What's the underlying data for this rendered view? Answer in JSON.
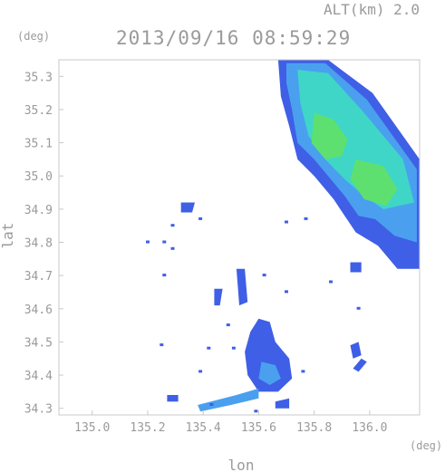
{
  "header": {
    "altitude_label": "ALT(km) 2.0",
    "timestamp": "2013/09/16 08:59:29"
  },
  "chart_data": {
    "type": "heatmap",
    "title": "2013/09/16 08:59:29",
    "subtitle": "ALT(km) 2.0",
    "xlabel": "lon",
    "ylabel": "lat",
    "x_unit": "(deg)",
    "y_unit": "(deg)",
    "xlim": [
      134.88,
      136.18
    ],
    "ylim": [
      34.28,
      35.35
    ],
    "grid": false,
    "x_ticks": [
      "135.0",
      "135.2",
      "135.4",
      "135.6",
      "135.8",
      "136.0"
    ],
    "y_ticks": [
      "34.3",
      "34.4",
      "34.5",
      "34.6",
      "34.7",
      "34.8",
      "34.9",
      "35.0",
      "35.1",
      "35.2",
      "35.3"
    ],
    "colors": {
      "weak": "#3f5fe6",
      "light": "#4aa0ee",
      "moderate": "#3fd6c8",
      "strong": "#5ee070",
      "frame": "#c8c8c8",
      "text": "#9a9a9a"
    },
    "echo_regions": [
      {
        "name": "northeast-band-outer",
        "level": "weak",
        "points": [
          [
            135.67,
            35.35
          ],
          [
            135.85,
            35.35
          ],
          [
            136.01,
            35.25
          ],
          [
            136.18,
            35.05
          ],
          [
            136.18,
            34.72
          ],
          [
            136.1,
            34.72
          ],
          [
            136.03,
            34.79
          ],
          [
            135.95,
            34.83
          ],
          [
            135.91,
            34.88
          ],
          [
            135.87,
            34.93
          ],
          [
            135.84,
            34.96
          ],
          [
            135.8,
            35.0
          ],
          [
            135.74,
            35.05
          ],
          [
            135.71,
            35.15
          ],
          [
            135.68,
            35.24
          ]
        ]
      },
      {
        "name": "northeast-band-mid",
        "level": "light",
        "points": [
          [
            135.7,
            35.34
          ],
          [
            135.84,
            35.34
          ],
          [
            135.99,
            35.23
          ],
          [
            136.17,
            35.02
          ],
          [
            136.17,
            34.8
          ],
          [
            136.09,
            34.82
          ],
          [
            136.02,
            34.87
          ],
          [
            135.96,
            34.88
          ],
          [
            135.91,
            34.94
          ],
          [
            135.86,
            34.99
          ],
          [
            135.8,
            35.05
          ],
          [
            135.74,
            35.1
          ],
          [
            135.72,
            35.2
          ],
          [
            135.7,
            35.28
          ]
        ]
      },
      {
        "name": "northeast-band-core",
        "level": "moderate",
        "points": [
          [
            135.74,
            35.32
          ],
          [
            135.85,
            35.31
          ],
          [
            135.97,
            35.2
          ],
          [
            136.12,
            35.05
          ],
          [
            136.16,
            34.92
          ],
          [
            136.05,
            34.9
          ],
          [
            135.98,
            34.94
          ],
          [
            135.91,
            34.99
          ],
          [
            135.84,
            35.05
          ],
          [
            135.78,
            35.12
          ],
          [
            135.75,
            35.22
          ]
        ]
      },
      {
        "name": "northeast-cell-north",
        "level": "strong",
        "points": [
          [
            135.8,
            35.19
          ],
          [
            135.87,
            35.17
          ],
          [
            135.92,
            35.11
          ],
          [
            135.9,
            35.06
          ],
          [
            135.84,
            35.05
          ],
          [
            135.79,
            35.1
          ]
        ]
      },
      {
        "name": "northeast-cell-south",
        "level": "strong",
        "points": [
          [
            135.95,
            35.05
          ],
          [
            136.05,
            35.03
          ],
          [
            136.1,
            34.96
          ],
          [
            136.06,
            34.91
          ],
          [
            135.98,
            34.93
          ],
          [
            135.93,
            34.99
          ]
        ]
      },
      {
        "name": "central-cluster",
        "level": "weak",
        "points": [
          [
            135.6,
            34.57
          ],
          [
            135.64,
            34.56
          ],
          [
            135.66,
            34.5
          ],
          [
            135.71,
            34.45
          ],
          [
            135.72,
            34.39
          ],
          [
            135.67,
            34.35
          ],
          [
            135.6,
            34.35
          ],
          [
            135.56,
            34.4
          ],
          [
            135.55,
            34.47
          ],
          [
            135.57,
            34.53
          ]
        ]
      },
      {
        "name": "central-core",
        "level": "light",
        "points": [
          [
            135.61,
            34.44
          ],
          [
            135.66,
            34.43
          ],
          [
            135.68,
            34.39
          ],
          [
            135.64,
            34.37
          ],
          [
            135.6,
            34.39
          ]
        ]
      },
      {
        "name": "southern-line",
        "level": "light",
        "points": [
          [
            135.38,
            34.31
          ],
          [
            135.52,
            34.34
          ],
          [
            135.6,
            34.36
          ],
          [
            135.6,
            34.33
          ],
          [
            135.5,
            34.31
          ],
          [
            135.39,
            34.29
          ]
        ]
      },
      {
        "name": "southeast-cell-a",
        "level": "weak",
        "points": [
          [
            135.93,
            34.49
          ],
          [
            135.96,
            34.5
          ],
          [
            135.97,
            34.46
          ],
          [
            135.94,
            34.45
          ]
        ]
      },
      {
        "name": "southeast-cell-b",
        "level": "weak",
        "points": [
          [
            135.94,
            34.42
          ],
          [
            135.97,
            34.45
          ],
          [
            135.99,
            34.44
          ],
          [
            135.96,
            34.41
          ]
        ]
      },
      {
        "name": "mid-scatter-a",
        "level": "weak",
        "points": [
          [
            135.52,
            34.72
          ],
          [
            135.55,
            34.72
          ],
          [
            135.56,
            34.62
          ],
          [
            135.53,
            34.61
          ]
        ]
      },
      {
        "name": "mid-scatter-b",
        "level": "weak",
        "points": [
          [
            135.32,
            34.92
          ],
          [
            135.37,
            34.92
          ],
          [
            135.36,
            34.89
          ],
          [
            135.32,
            34.89
          ]
        ]
      },
      {
        "name": "mid-scatter-c",
        "level": "weak",
        "points": [
          [
            135.44,
            34.66
          ],
          [
            135.47,
            34.66
          ],
          [
            135.46,
            34.61
          ],
          [
            135.44,
            34.61
          ]
        ]
      },
      {
        "name": "southwest-cell",
        "level": "weak",
        "points": [
          [
            135.27,
            34.34
          ],
          [
            135.31,
            34.34
          ],
          [
            135.31,
            34.32
          ],
          [
            135.27,
            34.32
          ]
        ]
      },
      {
        "name": "south-cell",
        "level": "weak",
        "points": [
          [
            135.66,
            34.32
          ],
          [
            135.71,
            34.33
          ],
          [
            135.71,
            34.3
          ],
          [
            135.66,
            34.3
          ]
        ]
      },
      {
        "name": "east-cell",
        "level": "weak",
        "points": [
          [
            135.93,
            34.74
          ],
          [
            135.97,
            34.74
          ],
          [
            135.97,
            34.71
          ],
          [
            135.93,
            34.71
          ]
        ]
      }
    ],
    "echo_specks": [
      {
        "lon": 135.29,
        "lat": 34.85,
        "level": "weak"
      },
      {
        "lon": 135.26,
        "lat": 34.8,
        "level": "weak"
      },
      {
        "lon": 135.2,
        "lat": 34.8,
        "level": "weak"
      },
      {
        "lon": 135.29,
        "lat": 34.78,
        "level": "weak"
      },
      {
        "lon": 135.26,
        "lat": 34.7,
        "level": "weak"
      },
      {
        "lon": 135.39,
        "lat": 34.87,
        "level": "weak"
      },
      {
        "lon": 135.25,
        "lat": 34.49,
        "level": "weak"
      },
      {
        "lon": 135.42,
        "lat": 34.48,
        "level": "weak"
      },
      {
        "lon": 135.51,
        "lat": 34.48,
        "level": "weak"
      },
      {
        "lon": 135.39,
        "lat": 34.41,
        "level": "weak"
      },
      {
        "lon": 135.49,
        "lat": 34.55,
        "level": "weak"
      },
      {
        "lon": 135.7,
        "lat": 34.65,
        "level": "weak"
      },
      {
        "lon": 135.62,
        "lat": 34.7,
        "level": "weak"
      },
      {
        "lon": 135.86,
        "lat": 34.68,
        "level": "weak"
      },
      {
        "lon": 135.96,
        "lat": 34.6,
        "level": "weak"
      },
      {
        "lon": 135.7,
        "lat": 34.86,
        "level": "weak"
      },
      {
        "lon": 135.77,
        "lat": 34.87,
        "level": "weak"
      },
      {
        "lon": 135.59,
        "lat": 34.29,
        "level": "weak"
      },
      {
        "lon": 135.43,
        "lat": 34.31,
        "level": "weak"
      },
      {
        "lon": 135.76,
        "lat": 34.41,
        "level": "weak"
      }
    ]
  }
}
